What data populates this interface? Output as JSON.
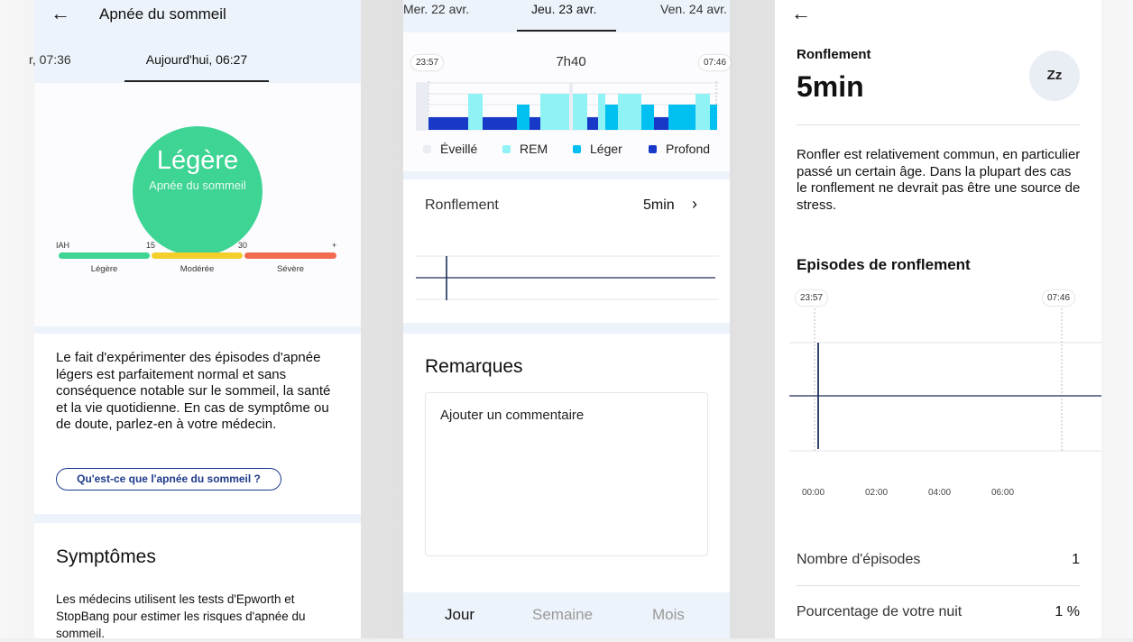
{
  "colors": {
    "accent": "#3dd494",
    "mild": "#3dd494",
    "moderate": "#f2cf2a",
    "severe": "#f26a50",
    "awake": "#e9edf3",
    "rem": "#8ff2f5",
    "light": "#00c0f2",
    "deep": "#1838c8",
    "dark_blue": "#1e3a8a"
  },
  "apnea": {
    "title": "Apnée du sommeil",
    "tab_prev": "r, 07:36",
    "tab_current": "Aujourd'hui, 06:27",
    "level": "Légère",
    "level_sub": "Apnée du sommeil",
    "scale": {
      "label": "IAH",
      "t1": "15",
      "t2": "30",
      "t3": "+",
      "cat1": "Légère",
      "cat2": "Modérée",
      "cat3": "Sévère"
    },
    "description": "Le fait d'expérimenter des épisodes d'apnée légers est parfaitement normal et sans conséquence notable sur le sommeil, la santé et la vie quotidienne. En cas de symptôme ou de doute, parlez-en à votre médecin.",
    "link": "Qu'est-ce que l'apnée du sommeil ?",
    "symptoms_title": "Symptômes",
    "symptoms_text": "Les médecins utilisent les tests d'Epworth et StopBang pour estimer les risques d'apnée du sommeil."
  },
  "sleep": {
    "days": [
      "Mer. 22 avr.",
      "Jeu. 23 avr.",
      "Ven. 24 avr."
    ],
    "start": "23:57",
    "end": "07:46",
    "duration": "7h40",
    "legend": {
      "awake": "Éveillé",
      "rem": "REM",
      "light": "Léger",
      "deep": "Profond"
    },
    "snore_label": "Ronflement",
    "snore_value": "5min",
    "remarks_title": "Remarques",
    "comment_placeholder": "Ajouter un commentaire",
    "nav": {
      "day": "Jour",
      "week": "Semaine",
      "month": "Mois"
    }
  },
  "snoring": {
    "title": "Ronflement",
    "value": "5min",
    "icon_text": "Zz",
    "description": "Ronfler est relativement commun, en particulier passé un certain âge. Dans la plupart des cas le ronflement ne devrait pas être une source de stress.",
    "episodes_title": "Episodes de ronflement",
    "start": "23:57",
    "end": "07:46",
    "x_ticks": [
      "00:00",
      "02:00",
      "04:00",
      "06:00"
    ],
    "count_label": "Nombre d'épisodes",
    "count_value": "1",
    "percent_label": "Pourcentage de votre nuit",
    "percent_value": "1 %"
  }
}
